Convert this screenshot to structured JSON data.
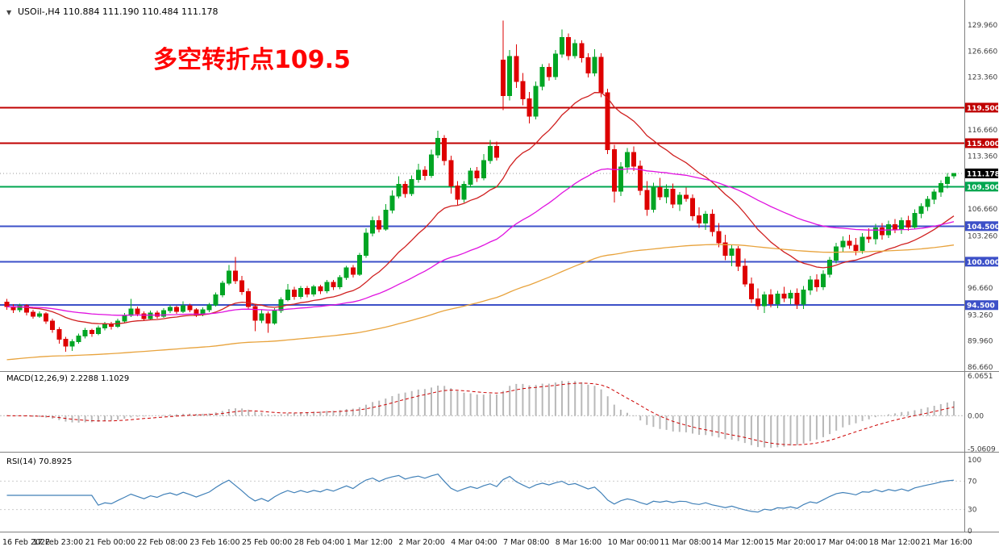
{
  "window": {
    "symbol_ohlc_label": "USOil-,H4  110.884 111.190 110.484 111.178"
  },
  "annotation": {
    "text": "多空转折点109.5",
    "color": "#FF0000"
  },
  "chart_data": {
    "type": "candlestick",
    "symbol": "USOil-",
    "timeframe": "H4",
    "ohlc_display": {
      "open": "110.884",
      "high": "111.190",
      "low": "110.484",
      "close": "111.178"
    },
    "colors": {
      "up": "#00A524",
      "down": "#DE0000",
      "background": "#FFFFFF"
    },
    "price_axis": {
      "range": [
        86.66,
        132.3
      ],
      "ticks": [
        {
          "price": 129.96,
          "label": "129.960"
        },
        {
          "price": 126.66,
          "label": "126.660"
        },
        {
          "price": 123.36,
          "label": "123.360"
        },
        {
          "price": 116.66,
          "label": "116.660"
        },
        {
          "price": 113.36,
          "label": "113.360"
        },
        {
          "price": 106.66,
          "label": "106.660"
        },
        {
          "price": 103.26,
          "label": "103.260"
        },
        {
          "price": 96.66,
          "label": "96.660"
        },
        {
          "price": 93.26,
          "label": "93.260"
        },
        {
          "price": 89.96,
          "label": "89.960"
        },
        {
          "price": 86.66,
          "label": "86.660"
        }
      ],
      "levels": [
        {
          "price": 119.5,
          "label": "119.500",
          "color": "#C00000",
          "width": 2
        },
        {
          "price": 115.0,
          "label": "115.000",
          "color": "#C00000",
          "width": 2
        },
        {
          "price": 109.5,
          "label": "109.500",
          "color": "#00A650",
          "width": 2
        },
        {
          "price": 104.5,
          "label": "104.500",
          "color": "#3C50C8",
          "width": 2
        },
        {
          "price": 100.0,
          "label": "100.000",
          "color": "#3C50C8",
          "width": 2
        },
        {
          "price": 94.5,
          "label": "94.500",
          "color": "#3C50C8",
          "width": 2
        }
      ],
      "current": {
        "price": 111.178,
        "label": "111.178",
        "bg": "#000000"
      }
    },
    "moving_averages": [
      {
        "name": "fast-ma",
        "color": "#D02020",
        "period": 20
      },
      {
        "name": "medium-ma",
        "color": "#E012E0",
        "period": 60
      },
      {
        "name": "slow-ma",
        "color": "#E8A33D",
        "period": 160,
        "seed": 87.5
      }
    ],
    "time_labels": [
      {
        "idx": 0,
        "text": "16 Feb 2022"
      },
      {
        "idx": 8,
        "text": "17 Feb 23:00"
      },
      {
        "idx": 16,
        "text": "21 Feb 00:00"
      },
      {
        "idx": 24,
        "text": "22 Feb 08:00"
      },
      {
        "idx": 32,
        "text": "23 Feb 16:00"
      },
      {
        "idx": 40,
        "text": "25 Feb 00:00"
      },
      {
        "idx": 48,
        "text": "28 Feb 04:00"
      },
      {
        "idx": 56,
        "text": "1 Mar 12:00"
      },
      {
        "idx": 64,
        "text": "2 Mar 20:00"
      },
      {
        "idx": 72,
        "text": "4 Mar 04:00"
      },
      {
        "idx": 80,
        "text": "7 Mar 08:00"
      },
      {
        "idx": 88,
        "text": "8 Mar 16:00"
      },
      {
        "idx": 96,
        "text": "10 Mar 00:00"
      },
      {
        "idx": 104,
        "text": "11 Mar 08:00"
      },
      {
        "idx": 112,
        "text": "14 Mar 12:00"
      },
      {
        "idx": 120,
        "text": "15 Mar 20:00"
      },
      {
        "idx": 128,
        "text": "17 Mar 04:00"
      },
      {
        "idx": 136,
        "text": "18 Mar 12:00"
      },
      {
        "idx": 144,
        "text": "21 Mar 16:00"
      }
    ],
    "indicators": {
      "macd": {
        "label": "MACD(12,26,9) 2.2288 1.1029",
        "params": [
          12,
          26,
          9
        ],
        "value": 2.2288,
        "signal_value": 1.1029,
        "histogram_color": "#B8B8B8",
        "signal_color": "#CC0000",
        "axis": [
          {
            "v": 6.0651,
            "label": "6.0651"
          },
          {
            "v": 0,
            "label": "0.00"
          },
          {
            "v": -5.0609,
            "label": "-5.0609"
          }
        ]
      },
      "rsi": {
        "label": "RSI(14) 70.8925",
        "period": 14,
        "value": 70.8925,
        "line_color": "#4080B8",
        "levels": [
          70,
          30
        ],
        "axis": [
          {
            "v": 100,
            "label": "100"
          },
          {
            "v": 70,
            "label": "70"
          },
          {
            "v": 30,
            "label": "30"
          },
          {
            "v": 0,
            "label": "0"
          }
        ]
      }
    },
    "candles": [
      [
        94.9,
        95.3,
        93.9,
        94.3
      ],
      [
        94.3,
        94.6,
        93.5,
        93.9
      ],
      [
        93.9,
        94.7,
        93.6,
        94.4
      ],
      [
        94.4,
        94.6,
        93.2,
        93.6
      ],
      [
        93.6,
        93.9,
        92.8,
        93.1
      ],
      [
        93.1,
        93.7,
        92.9,
        93.4
      ],
      [
        93.4,
        93.6,
        92.1,
        92.5
      ],
      [
        92.5,
        92.8,
        91.0,
        91.4
      ],
      [
        91.4,
        91.7,
        89.6,
        90.2
      ],
      [
        90.2,
        90.5,
        88.6,
        89.3
      ],
      [
        89.3,
        90.2,
        88.7,
        89.9
      ],
      [
        89.9,
        90.9,
        89.6,
        90.6
      ],
      [
        90.6,
        91.6,
        90.3,
        91.3
      ],
      [
        91.3,
        91.5,
        90.5,
        90.9
      ],
      [
        90.9,
        91.9,
        90.7,
        91.6
      ],
      [
        91.6,
        92.4,
        91.3,
        92.1
      ],
      [
        92.1,
        92.4,
        91.4,
        91.8
      ],
      [
        91.8,
        92.8,
        91.6,
        92.5
      ],
      [
        92.5,
        93.5,
        92.2,
        93.2
      ],
      [
        93.2,
        95.3,
        93.0,
        94.0
      ],
      [
        94.0,
        94.3,
        93.1,
        93.4
      ],
      [
        93.4,
        93.7,
        92.5,
        92.8
      ],
      [
        92.8,
        93.8,
        92.6,
        93.5
      ],
      [
        93.5,
        93.8,
        92.8,
        93.1
      ],
      [
        93.1,
        94.1,
        92.9,
        93.8
      ],
      [
        93.8,
        94.5,
        93.5,
        94.2
      ],
      [
        94.2,
        94.4,
        93.4,
        93.7
      ],
      [
        93.7,
        95.0,
        93.5,
        94.4
      ],
      [
        94.4,
        94.7,
        93.6,
        93.9
      ],
      [
        93.9,
        94.1,
        93.0,
        93.3
      ],
      [
        93.3,
        94.2,
        93.1,
        93.9
      ],
      [
        93.9,
        94.8,
        93.6,
        94.5
      ],
      [
        94.5,
        96.1,
        94.3,
        95.8
      ],
      [
        95.8,
        97.6,
        95.5,
        97.3
      ],
      [
        97.3,
        99.6,
        97.0,
        98.8
      ],
      [
        98.8,
        100.6,
        97.2,
        97.6
      ],
      [
        97.6,
        98.2,
        95.8,
        96.2
      ],
      [
        96.2,
        96.6,
        93.9,
        94.3
      ],
      [
        94.3,
        94.7,
        91.2,
        92.6
      ],
      [
        92.6,
        93.9,
        92.2,
        93.4
      ],
      [
        93.4,
        93.7,
        91.0,
        92.2
      ],
      [
        92.2,
        94.1,
        92.0,
        93.8
      ],
      [
        93.8,
        95.5,
        93.5,
        95.2
      ],
      [
        95.2,
        97.2,
        95.0,
        96.4
      ],
      [
        96.4,
        96.8,
        95.2,
        95.6
      ],
      [
        95.6,
        96.9,
        95.3,
        96.6
      ],
      [
        96.6,
        96.9,
        95.5,
        95.9
      ],
      [
        95.9,
        97.1,
        95.6,
        96.8
      ],
      [
        96.8,
        97.1,
        95.9,
        96.3
      ],
      [
        96.3,
        97.7,
        96.0,
        97.4
      ],
      [
        97.4,
        97.7,
        96.4,
        96.8
      ],
      [
        96.8,
        98.3,
        96.5,
        98.0
      ],
      [
        98.0,
        99.5,
        97.7,
        99.2
      ],
      [
        99.2,
        99.6,
        98.0,
        98.4
      ],
      [
        98.4,
        101.1,
        98.2,
        100.8
      ],
      [
        100.8,
        104.2,
        100.5,
        103.6
      ],
      [
        103.6,
        105.7,
        103.2,
        105.2
      ],
      [
        105.2,
        105.8,
        103.7,
        104.1
      ],
      [
        104.1,
        107.3,
        103.9,
        106.5
      ],
      [
        106.5,
        109.0,
        106.1,
        108.3
      ],
      [
        108.3,
        110.8,
        108.0,
        109.8
      ],
      [
        109.8,
        110.2,
        108.1,
        108.6
      ],
      [
        108.6,
        110.9,
        108.3,
        110.4
      ],
      [
        110.4,
        112.4,
        110.0,
        111.6
      ],
      [
        111.6,
        112.1,
        110.3,
        110.9
      ],
      [
        110.9,
        114.2,
        110.6,
        113.5
      ],
      [
        113.5,
        116.6,
        113.1,
        115.6
      ],
      [
        115.6,
        116.0,
        112.2,
        112.8
      ],
      [
        112.8,
        113.4,
        108.6,
        109.6
      ],
      [
        109.6,
        110.2,
        107.2,
        107.9
      ],
      [
        107.9,
        110.2,
        107.5,
        109.8
      ],
      [
        109.8,
        111.9,
        109.4,
        111.5
      ],
      [
        111.5,
        112.0,
        110.1,
        110.6
      ],
      [
        110.6,
        113.6,
        110.3,
        112.8
      ],
      [
        112.8,
        115.4,
        112.4,
        114.6
      ],
      [
        114.6,
        115.2,
        112.8,
        113.2
      ],
      [
        125.5,
        130.5,
        119.2,
        121.0
      ],
      [
        121.0,
        126.8,
        120.4,
        126.0
      ],
      [
        126.0,
        127.5,
        122.0,
        122.8
      ],
      [
        122.8,
        123.9,
        119.8,
        120.6
      ],
      [
        120.6,
        121.5,
        117.5,
        118.4
      ],
      [
        118.4,
        122.8,
        118.0,
        122.2
      ],
      [
        122.2,
        125.0,
        121.7,
        124.6
      ],
      [
        124.6,
        125.1,
        122.9,
        123.4
      ],
      [
        123.4,
        126.8,
        123.0,
        126.3
      ],
      [
        126.3,
        129.4,
        125.8,
        128.4
      ],
      [
        128.4,
        128.9,
        125.5,
        126.1
      ],
      [
        126.1,
        128.1,
        125.7,
        127.6
      ],
      [
        127.6,
        128.0,
        125.2,
        125.8
      ],
      [
        125.8,
        126.4,
        123.3,
        123.9
      ],
      [
        123.9,
        126.9,
        123.5,
        125.9
      ],
      [
        125.9,
        126.4,
        120.8,
        121.4
      ],
      [
        121.4,
        121.9,
        113.6,
        114.2
      ],
      [
        114.2,
        114.8,
        107.5,
        108.9
      ],
      [
        108.9,
        112.6,
        108.3,
        112.0
      ],
      [
        112.0,
        114.4,
        111.2,
        113.8
      ],
      [
        113.8,
        114.6,
        111.5,
        112.1
      ],
      [
        112.1,
        112.8,
        108.4,
        109.0
      ],
      [
        109.0,
        110.2,
        105.8,
        106.6
      ],
      [
        106.6,
        110.0,
        106.2,
        109.4
      ],
      [
        109.4,
        110.6,
        107.8,
        108.2
      ],
      [
        108.2,
        109.8,
        107.4,
        109.2
      ],
      [
        109.2,
        109.9,
        106.8,
        107.3
      ],
      [
        107.3,
        108.8,
        106.4,
        108.4
      ],
      [
        108.4,
        109.4,
        107.6,
        108.0
      ],
      [
        108.0,
        108.5,
        105.2,
        105.8
      ],
      [
        105.8,
        106.9,
        104.3,
        104.9
      ],
      [
        104.9,
        106.4,
        104.0,
        106.0
      ],
      [
        106.0,
        106.6,
        103.2,
        103.8
      ],
      [
        103.8,
        104.9,
        101.8,
        102.4
      ],
      [
        102.4,
        103.4,
        100.2,
        100.8
      ],
      [
        100.8,
        102.2,
        99.4,
        101.6
      ],
      [
        101.6,
        102.0,
        98.8,
        99.4
      ],
      [
        99.4,
        100.4,
        96.8,
        97.2
      ],
      [
        97.2,
        98.0,
        94.8,
        95.3
      ],
      [
        95.3,
        96.6,
        93.9,
        94.4
      ],
      [
        94.4,
        96.2,
        93.5,
        95.8
      ],
      [
        95.8,
        96.5,
        94.2,
        94.7
      ],
      [
        94.7,
        96.3,
        94.1,
        95.9
      ],
      [
        95.9,
        96.8,
        94.9,
        95.4
      ],
      [
        95.4,
        96.4,
        94.6,
        96.0
      ],
      [
        96.0,
        96.6,
        94.0,
        94.6
      ],
      [
        94.6,
        96.9,
        94.0,
        96.4
      ],
      [
        96.4,
        98.2,
        95.8,
        97.7
      ],
      [
        97.7,
        98.4,
        96.2,
        96.8
      ],
      [
        96.8,
        98.9,
        96.4,
        98.4
      ],
      [
        98.4,
        100.6,
        98.0,
        100.2
      ],
      [
        100.2,
        102.4,
        99.8,
        101.9
      ],
      [
        101.9,
        103.2,
        101.2,
        102.6
      ],
      [
        102.6,
        103.4,
        101.6,
        102.1
      ],
      [
        102.1,
        103.0,
        100.8,
        101.4
      ],
      [
        101.4,
        103.6,
        101.0,
        103.1
      ],
      [
        103.1,
        104.2,
        102.4,
        102.9
      ],
      [
        102.9,
        104.8,
        102.2,
        104.3
      ],
      [
        104.3,
        104.9,
        102.8,
        103.4
      ],
      [
        103.4,
        105.2,
        103.0,
        104.7
      ],
      [
        104.7,
        105.4,
        103.6,
        104.1
      ],
      [
        104.1,
        105.6,
        103.5,
        105.2
      ],
      [
        105.2,
        105.8,
        103.9,
        104.4
      ],
      [
        104.4,
        106.6,
        104.1,
        106.1
      ],
      [
        106.1,
        107.4,
        105.5,
        107.0
      ],
      [
        107.0,
        108.3,
        106.4,
        107.9
      ],
      [
        107.9,
        109.2,
        107.3,
        108.8
      ],
      [
        108.8,
        110.3,
        108.2,
        109.9
      ],
      [
        109.9,
        111.2,
        109.3,
        110.7
      ],
      [
        110.884,
        111.19,
        110.484,
        111.178
      ]
    ]
  }
}
